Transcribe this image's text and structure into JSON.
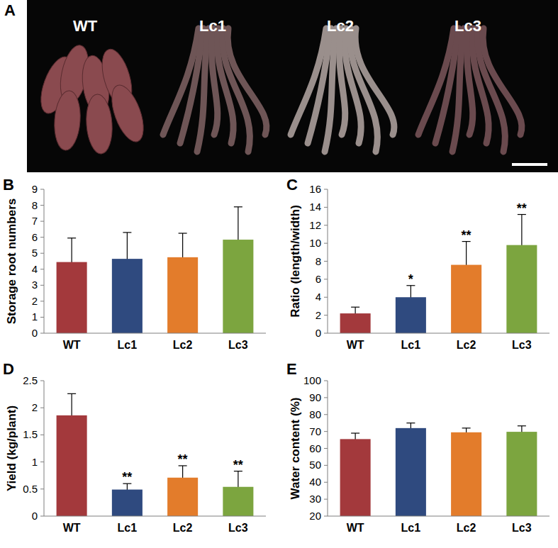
{
  "photo": {
    "letter": "A",
    "labels": [
      "WT",
      "Lc1",
      "Lc2",
      "Lc3"
    ]
  },
  "chart_data": [
    {
      "type": "bar",
      "title": "B",
      "y_label": "Storage root numbers",
      "categories": [
        "WT",
        "Lc1",
        "Lc2",
        "Lc3"
      ],
      "values": [
        4.45,
        4.65,
        4.75,
        5.85
      ],
      "errors": [
        1.5,
        1.65,
        1.5,
        2.05
      ],
      "colors": [
        "#a3393c",
        "#2f4a7f",
        "#e37c2b",
        "#7ca53f"
      ],
      "ylim": [
        0,
        9
      ],
      "yticks": [
        0,
        1,
        2,
        3,
        4,
        5,
        6,
        7,
        8,
        9
      ]
    },
    {
      "type": "bar",
      "title": "C",
      "y_label": "Ratio (length/width)",
      "categories": [
        "WT",
        "Lc1",
        "Lc2",
        "Lc3"
      ],
      "values": [
        2.2,
        4.0,
        7.6,
        9.8
      ],
      "errors": [
        0.7,
        1.3,
        2.6,
        3.4
      ],
      "annotations": [
        null,
        "*",
        "**",
        "**"
      ],
      "colors": [
        "#a3393c",
        "#2f4a7f",
        "#e37c2b",
        "#7ca53f"
      ],
      "ylim": [
        0,
        16
      ],
      "yticks": [
        0,
        2,
        4,
        6,
        8,
        10,
        12,
        14,
        16
      ]
    },
    {
      "type": "bar",
      "title": "D",
      "y_label": "Yield (kg/plant)",
      "categories": [
        "WT",
        "Lc1",
        "Lc2",
        "Lc3"
      ],
      "values": [
        1.86,
        0.49,
        0.71,
        0.54
      ],
      "errors": [
        0.4,
        0.11,
        0.22,
        0.29
      ],
      "annotations": [
        null,
        "**",
        "**",
        "**"
      ],
      "colors": [
        "#a3393c",
        "#2f4a7f",
        "#e37c2b",
        "#7ca53f"
      ],
      "ylim": [
        0,
        2.5
      ],
      "yticks": [
        0,
        0.5,
        1,
        1.5,
        2,
        2.5
      ]
    },
    {
      "type": "bar",
      "title": "E",
      "y_label": "Water content (%)",
      "categories": [
        "WT",
        "Lc1",
        "Lc2",
        "Lc3"
      ],
      "values": [
        65.5,
        72,
        69.5,
        69.8
      ],
      "errors": [
        3.5,
        3,
        2.5,
        3.5
      ],
      "colors": [
        "#a3393c",
        "#2f4a7f",
        "#e37c2b",
        "#7ca53f"
      ],
      "ylim": [
        20,
        100
      ],
      "yticks": [
        20,
        30,
        40,
        50,
        60,
        70,
        80,
        90,
        100
      ]
    }
  ]
}
